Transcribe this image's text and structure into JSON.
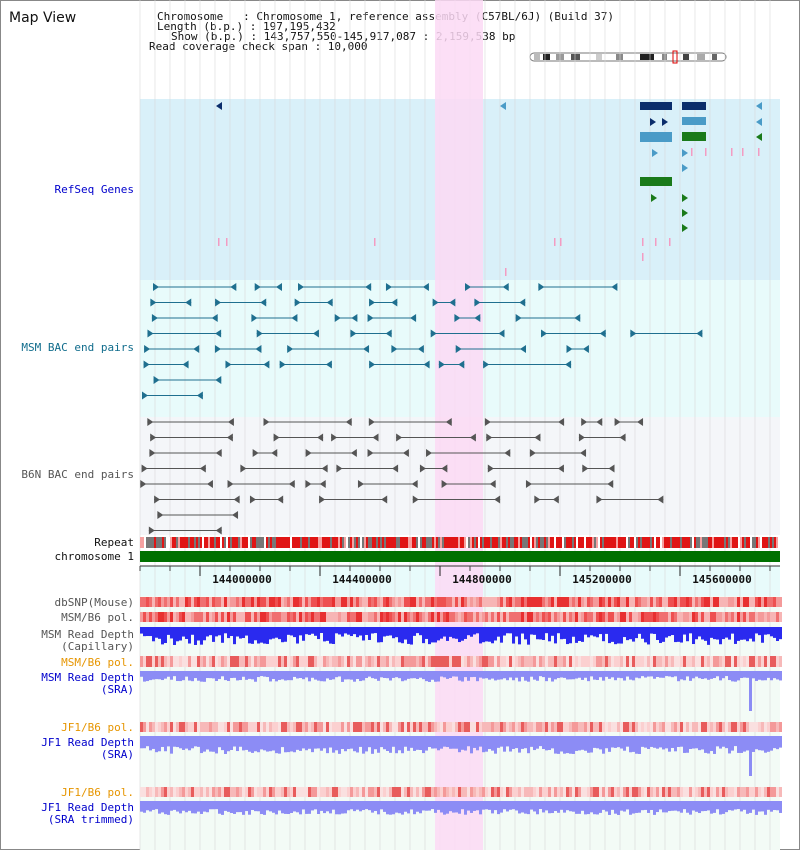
{
  "window_title": "Map View",
  "info": {
    "chromosome_line": "Chromosome   : Chromosome 1, reference assembly (C57BL/6J) (Build 37)",
    "length_line": "Length (b.p.) : 197,195,432",
    "show_line": "Show (b.p.) : 143,757,550-145,917,087 : 2,159,538 bp",
    "span_line": "Read coverage check span : 10,000"
  },
  "tracks": {
    "refseq_genes": "RefSeq Genes",
    "msm_bac": "MSM BAC end pairs",
    "b6n_bac": "B6N BAC end pairs",
    "repeat": "Repeat",
    "chromosome": "chromosome 1",
    "dbsnp": "dbSNP(Mouse)",
    "msm_b6_pol_1": "MSM/B6 pol.",
    "msm_read_depth_cap_1": "MSM Read Depth",
    "msm_read_depth_cap_2": "(Capillary)",
    "msm_b6_pol_2": "MSM/B6 pol.",
    "msm_read_depth_sra_1": "MSM Read Depth",
    "msm_read_depth_sra_2": "(SRA)",
    "jf1_b6_pol_1": "JF1/B6 pol.",
    "jf1_read_depth_sra_1": "JF1 Read Depth",
    "jf1_read_depth_sra_2": "(SRA)",
    "jf1_b6_pol_2": "JF1/B6 pol.",
    "jf1_read_depth_trim_1": "JF1 Read Depth",
    "jf1_read_depth_trim_2": "(SRA trimmed)"
  },
  "ruler": {
    "ticks": [
      "144000000",
      "144400000",
      "144800000",
      "145200000",
      "145600000"
    ]
  },
  "colors": {
    "refseq_bg": "#d9f0f9",
    "msm_bg": "#e8fbfb",
    "b6n_bg": "#f4f6f9",
    "highlight": "#fbd9f4",
    "gene_navy": "#0b2d6b",
    "gene_steel": "#4a9bc7",
    "gene_green": "#1a7a1a",
    "gene_pink": "#f39cc2",
    "msm_line": "#1f6f8f",
    "b6n_line": "#555555",
    "chromosome_bar": "#007000",
    "depth_blue": "#2a2aef",
    "depth_light": "#8c8cf5",
    "label_blue": "#0000cc",
    "label_teal": "#106c8c",
    "label_gray": "#555555",
    "label_orange": "#e69500"
  }
}
